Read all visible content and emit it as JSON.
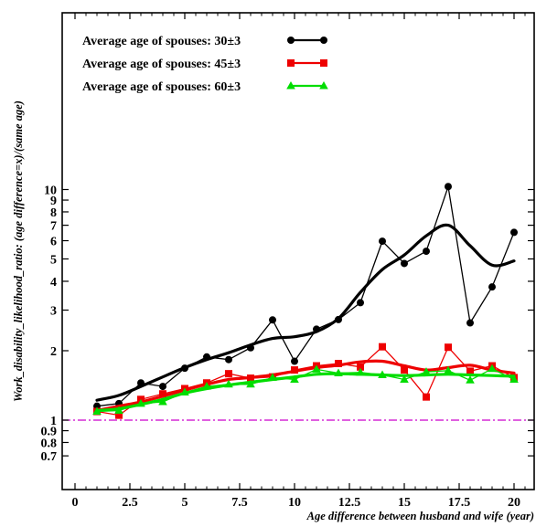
{
  "chart_data": {
    "type": "line",
    "xlabel": "Age difference between husband and wife (year)",
    "ylabel": "Work_disability_likelihood_ratio: (age difference=x)/(same age)",
    "xlim": [
      -0.8,
      21.1
    ],
    "ylim": [
      0.7,
      10
    ],
    "y_scale": "log",
    "x_ticks": [
      0,
      2.5,
      5,
      7.5,
      10,
      12.5,
      15,
      17.5,
      20
    ],
    "x_tick_labels": [
      "0",
      "2.5",
      "5",
      "7.5",
      "10",
      "12.5",
      "15",
      "17.5",
      "20"
    ],
    "y_ticks": [
      0.7,
      0.8,
      0.9,
      1,
      2,
      3,
      4,
      5,
      6,
      7,
      8,
      9,
      10
    ],
    "y_tick_labels": [
      "0.7",
      "0.8",
      "0.9",
      "1",
      "2",
      "3",
      "4",
      "5",
      "6",
      "7",
      "8",
      "9",
      "10"
    ],
    "reference_line": {
      "y": 1,
      "style": "dash-dot",
      "color": "#cc00cc"
    },
    "grid": false,
    "legend_position": "top-left",
    "series": [
      {
        "name": "Average age of spouses: 30±3",
        "color": "#000000",
        "marker": "circle",
        "x": [
          1,
          2,
          3,
          4,
          5,
          6,
          7,
          8,
          9,
          10,
          11,
          12,
          13,
          14,
          15,
          16,
          17,
          18,
          19,
          20
        ],
        "values": [
          1.15,
          1.18,
          1.45,
          1.4,
          1.68,
          1.88,
          1.83,
          2.06,
          2.72,
          1.8,
          2.48,
          2.73,
          3.23,
          5.97,
          4.78,
          5.4,
          10.3,
          2.64,
          3.78,
          6.52
        ],
        "smooth": [
          1.22,
          1.28,
          1.4,
          1.54,
          1.69,
          1.83,
          1.96,
          2.12,
          2.26,
          2.3,
          2.42,
          2.76,
          3.58,
          4.5,
          5.2,
          6.3,
          7.0,
          5.7,
          4.7,
          4.9
        ]
      },
      {
        "name": "Average age of spouses: 45±3",
        "color": "#ee0000",
        "marker": "square",
        "x": [
          1,
          2,
          3,
          4,
          5,
          6,
          7,
          8,
          9,
          10,
          11,
          12,
          13,
          14,
          15,
          16,
          17,
          18,
          19,
          20
        ],
        "values": [
          1.09,
          1.05,
          1.23,
          1.3,
          1.37,
          1.45,
          1.59,
          1.52,
          1.54,
          1.65,
          1.72,
          1.76,
          1.7,
          2.08,
          1.65,
          1.26,
          2.07,
          1.63,
          1.72,
          1.53
        ],
        "smooth": [
          1.1,
          1.15,
          1.2,
          1.27,
          1.35,
          1.43,
          1.5,
          1.53,
          1.57,
          1.63,
          1.69,
          1.73,
          1.79,
          1.8,
          1.72,
          1.65,
          1.69,
          1.73,
          1.65,
          1.6
        ]
      },
      {
        "name": "Average age of spouses: 60±3",
        "color": "#00dd00",
        "marker": "triangle",
        "x": [
          1,
          2,
          3,
          4,
          5,
          6,
          7,
          8,
          9,
          10,
          11,
          12,
          13,
          14,
          15,
          16,
          17,
          18,
          19,
          20
        ],
        "values": [
          1.09,
          1.1,
          1.18,
          1.2,
          1.32,
          1.4,
          1.43,
          1.43,
          1.53,
          1.5,
          1.66,
          1.6,
          1.61,
          1.57,
          1.5,
          1.62,
          1.64,
          1.49,
          1.67,
          1.5
        ],
        "smooth": [
          1.1,
          1.12,
          1.17,
          1.23,
          1.31,
          1.37,
          1.42,
          1.46,
          1.5,
          1.54,
          1.58,
          1.59,
          1.58,
          1.57,
          1.56,
          1.57,
          1.58,
          1.57,
          1.56,
          1.55
        ]
      }
    ]
  }
}
